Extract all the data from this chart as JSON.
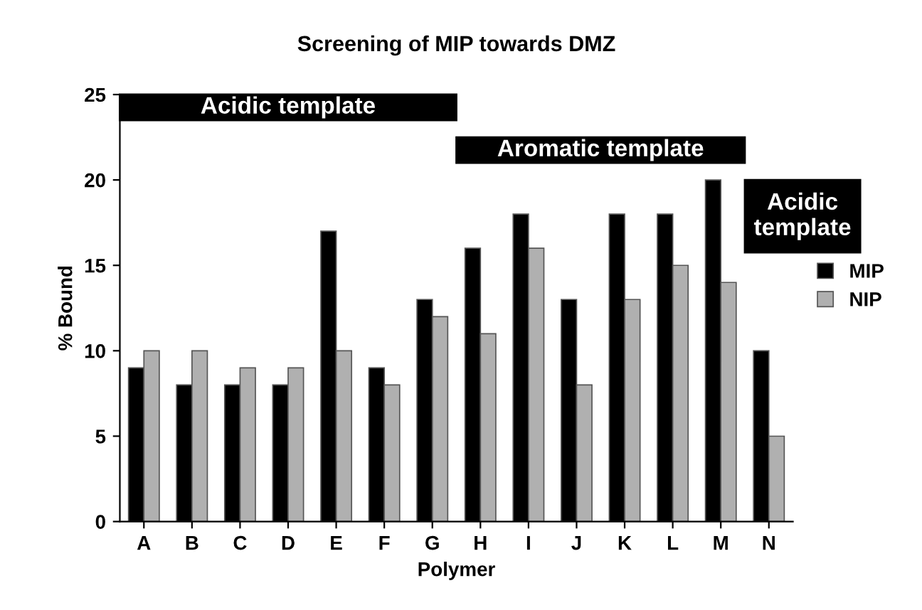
{
  "chart_data": {
    "type": "bar",
    "title": "Screening of MIP towards DMZ",
    "xlabel": "Polymer",
    "ylabel": "% Bound",
    "categories": [
      "A",
      "B",
      "C",
      "D",
      "E",
      "F",
      "G",
      "H",
      "I",
      "J",
      "K",
      "L",
      "M",
      "N"
    ],
    "series": [
      {
        "name": "MIP",
        "color": "#000000",
        "values": [
          9,
          8,
          8,
          8,
          17,
          9,
          13,
          16,
          18,
          13,
          18,
          18,
          20,
          10
        ]
      },
      {
        "name": "NIP",
        "color": "#b0b0b0",
        "values": [
          10,
          10,
          9,
          9,
          10,
          8,
          12,
          11,
          16,
          8,
          13,
          15,
          14,
          5
        ]
      }
    ],
    "ylim": [
      0,
      25
    ],
    "yticks": [
      0,
      5,
      10,
      15,
      20,
      25
    ],
    "grid": false,
    "legend": "right",
    "annotations": [
      "Acidic template",
      "Aromatic template",
      "Acidic\ntemplate"
    ]
  }
}
